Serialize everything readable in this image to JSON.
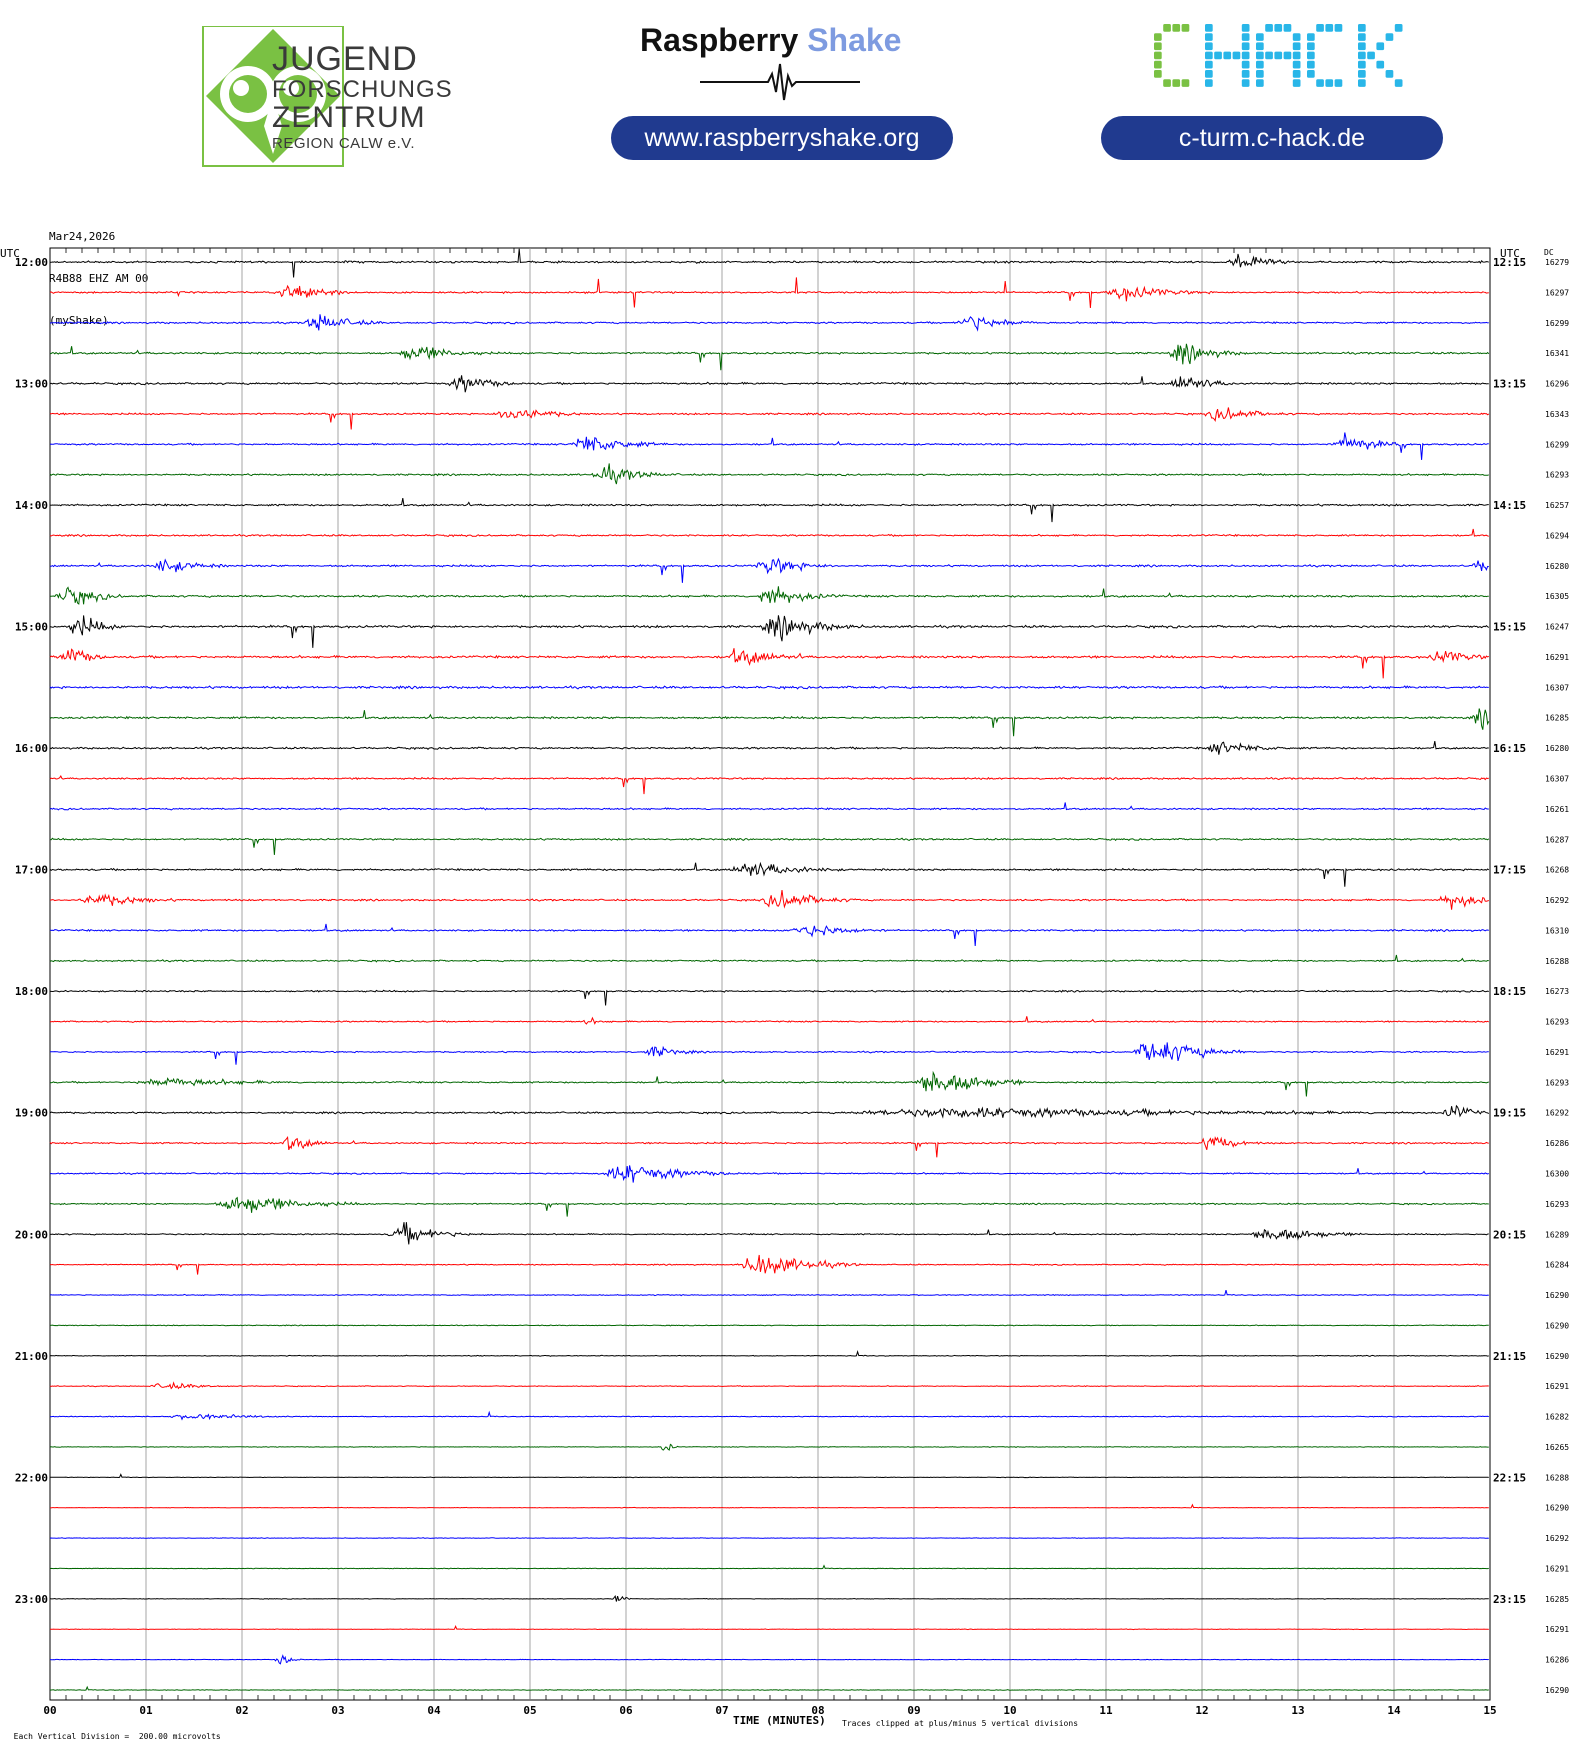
{
  "header": {
    "jfz": {
      "line1": "JUGEND",
      "line2": "FORSCHUNGS",
      "line3": "ZENTRUM",
      "line4": "REGION CALW e.V.",
      "color": "#7ac143"
    },
    "raspberry": {
      "word1": "Raspberry",
      "word2": "Shake",
      "url": "www.raspberryshake.org"
    },
    "chack": {
      "logo": "CHACK",
      "url": "c-turm.c-hack.de",
      "color_green": "#7ac143",
      "color_cyan": "#29b6e8"
    }
  },
  "chart_meta": {
    "date": "Mar24,2026",
    "station": "R4B88 EHZ AM 00",
    "source": "(myShake)",
    "left_tz": "UTC",
    "right_tz": "UTC",
    "dc_label": "DC",
    "footer_left": "Each Vertical Division =  200.00 microvolts",
    "footer_center": "TIME (MINUTES)",
    "footer_right": "Traces clipped at plus/minus 5 vertical divisions"
  },
  "chart_data": {
    "type": "line",
    "title": "",
    "xlabel": "TIME (MINUTES)",
    "x_range": [
      0,
      15
    ],
    "x_ticks": [
      "00",
      "01",
      "02",
      "03",
      "04",
      "05",
      "06",
      "07",
      "08",
      "09",
      "10",
      "11",
      "12",
      "13",
      "14",
      "15"
    ],
    "row_minutes": 15,
    "row_count": 48,
    "start_time": "12:00",
    "series_colors": [
      "#000000",
      "#ff0000",
      "#0000ff",
      "#006600"
    ],
    "hour_labels_left": [
      "12:00",
      "13:00",
      "14:00",
      "15:00",
      "16:00",
      "17:00",
      "18:00",
      "19:00",
      "20:00",
      "21:00",
      "22:00",
      "23:00"
    ],
    "hour_labels_right": [
      "12:15",
      "13:15",
      "14:15",
      "15:15",
      "16:15",
      "17:15",
      "18:15",
      "19:15",
      "20:15",
      "21:15",
      "22:15",
      "23:15"
    ],
    "dc_offsets": [
      16279,
      16297,
      16299,
      16341,
      16296,
      16343,
      16299,
      16293,
      16257,
      16294,
      16280,
      16305,
      16247,
      16291,
      16307,
      16285,
      16280,
      16307,
      16261,
      16287,
      16268,
      16292,
      16310,
      16288,
      16273,
      16293,
      16291,
      16293,
      16292,
      16286,
      16300,
      16293,
      16289,
      16284,
      16290,
      16290,
      16290,
      16291,
      16282,
      16265,
      16288,
      16290,
      16292,
      16291,
      16285,
      16291,
      16286,
      16290
    ],
    "noise_level": [
      0.25,
      0.22,
      0.22,
      0.24,
      0.25,
      0.22,
      0.22,
      0.22,
      0.24,
      0.22,
      0.24,
      0.26,
      0.3,
      0.3,
      0.3,
      0.26,
      0.24,
      0.22,
      0.22,
      0.22,
      0.24,
      0.22,
      0.22,
      0.2,
      0.2,
      0.18,
      0.18,
      0.2,
      0.22,
      0.2,
      0.18,
      0.18,
      0.16,
      0.14,
      0.12,
      0.1,
      0.1,
      0.1,
      0.1,
      0.08,
      0.07,
      0.07,
      0.07,
      0.07,
      0.07,
      0.07,
      0.07,
      0.07
    ],
    "events": [
      {
        "row": 0,
        "minute": 12.4,
        "amplitude": 1.8,
        "duration": 0.7
      },
      {
        "row": 1,
        "minute": 2.5,
        "amplitude": 1.4,
        "duration": 1.0
      },
      {
        "row": 1,
        "minute": 11.2,
        "amplitude": 1.2,
        "duration": 1.3
      },
      {
        "row": 2,
        "minute": 2.8,
        "amplitude": 1.5,
        "duration": 0.9
      },
      {
        "row": 2,
        "minute": 9.6,
        "amplitude": 1.6,
        "duration": 0.9
      },
      {
        "row": 3,
        "minute": 3.8,
        "amplitude": 1.4,
        "duration": 1.1
      },
      {
        "row": 3,
        "minute": 11.8,
        "amplitude": 1.6,
        "duration": 0.9
      },
      {
        "row": 4,
        "minute": 4.3,
        "amplitude": 1.4,
        "duration": 0.9
      },
      {
        "row": 4,
        "minute": 11.8,
        "amplitude": 1.5,
        "duration": 0.8
      },
      {
        "row": 5,
        "minute": 4.8,
        "amplitude": 1.5,
        "duration": 1.0
      },
      {
        "row": 5,
        "minute": 12.2,
        "amplitude": 1.2,
        "duration": 1.0
      },
      {
        "row": 6,
        "minute": 5.6,
        "amplitude": 1.6,
        "duration": 1.1
      },
      {
        "row": 6,
        "minute": 13.5,
        "amplitude": 1.8,
        "duration": 0.8
      },
      {
        "row": 7,
        "minute": 5.8,
        "amplitude": 1.4,
        "duration": 1.0
      },
      {
        "row": 10,
        "minute": 1.2,
        "amplitude": 1.2,
        "duration": 1.0
      },
      {
        "row": 10,
        "minute": 7.5,
        "amplitude": 1.6,
        "duration": 0.9
      },
      {
        "row": 10,
        "minute": 14.9,
        "amplitude": 1.2,
        "duration": 0.5
      },
      {
        "row": 11,
        "minute": 0.2,
        "amplitude": 1.6,
        "duration": 0.8
      },
      {
        "row": 11,
        "minute": 7.5,
        "amplitude": 1.8,
        "duration": 1.0
      },
      {
        "row": 12,
        "minute": 0.3,
        "amplitude": 2.0,
        "duration": 0.6
      },
      {
        "row": 12,
        "minute": 7.6,
        "amplitude": 1.8,
        "duration": 1.2
      },
      {
        "row": 13,
        "minute": 0.2,
        "amplitude": 1.8,
        "duration": 0.6
      },
      {
        "row": 13,
        "minute": 7.2,
        "amplitude": 1.4,
        "duration": 1.0
      },
      {
        "row": 13,
        "minute": 14.5,
        "amplitude": 1.2,
        "duration": 0.9
      },
      {
        "row": 15,
        "minute": 14.9,
        "amplitude": 1.6,
        "duration": 0.5
      },
      {
        "row": 16,
        "minute": 12.2,
        "amplitude": 1.2,
        "duration": 1.0
      },
      {
        "row": 20,
        "minute": 7.3,
        "amplitude": 1.4,
        "duration": 1.3
      },
      {
        "row": 21,
        "minute": 0.5,
        "amplitude": 1.2,
        "duration": 1.2
      },
      {
        "row": 21,
        "minute": 7.6,
        "amplitude": 1.6,
        "duration": 1.1
      },
      {
        "row": 21,
        "minute": 14.6,
        "amplitude": 1.5,
        "duration": 0.8
      },
      {
        "row": 22,
        "minute": 7.9,
        "amplitude": 1.2,
        "duration": 1.2
      },
      {
        "row": 25,
        "minute": 5.6,
        "amplitude": 0.6,
        "duration": 0.4
      },
      {
        "row": 26,
        "minute": 6.3,
        "amplitude": 1.0,
        "duration": 0.7
      },
      {
        "row": 26,
        "minute": 11.5,
        "amplitude": 2.4,
        "duration": 1.2
      },
      {
        "row": 27,
        "minute": 1.2,
        "amplitude": 0.8,
        "duration": 2.2
      },
      {
        "row": 27,
        "minute": 9.2,
        "amplitude": 2.8,
        "duration": 1.2
      },
      {
        "row": 28,
        "minute": 9.5,
        "amplitude": 0.9,
        "duration": 7.5
      },
      {
        "row": 28,
        "minute": 14.6,
        "amplitude": 1.6,
        "duration": 0.5
      },
      {
        "row": 29,
        "minute": 2.5,
        "amplitude": 1.4,
        "duration": 0.6
      },
      {
        "row": 29,
        "minute": 12.1,
        "amplitude": 1.4,
        "duration": 0.7
      },
      {
        "row": 30,
        "minute": 6.0,
        "amplitude": 1.6,
        "duration": 1.6
      },
      {
        "row": 31,
        "minute": 2.0,
        "amplitude": 1.6,
        "duration": 1.6
      },
      {
        "row": 32,
        "minute": 3.7,
        "amplitude": 1.6,
        "duration": 1.0
      },
      {
        "row": 32,
        "minute": 12.7,
        "amplitude": 1.6,
        "duration": 1.2
      },
      {
        "row": 33,
        "minute": 7.4,
        "amplitude": 2.0,
        "duration": 1.3
      },
      {
        "row": 37,
        "minute": 1.2,
        "amplitude": 0.6,
        "duration": 1.0
      },
      {
        "row": 38,
        "minute": 1.5,
        "amplitude": 0.5,
        "duration": 1.6
      },
      {
        "row": 39,
        "minute": 6.4,
        "amplitude": 1.2,
        "duration": 0.2
      },
      {
        "row": 44,
        "minute": 5.9,
        "amplitude": 1.2,
        "duration": 0.2
      },
      {
        "row": 46,
        "minute": 2.4,
        "amplitude": 1.2,
        "duration": 0.3
      }
    ]
  }
}
